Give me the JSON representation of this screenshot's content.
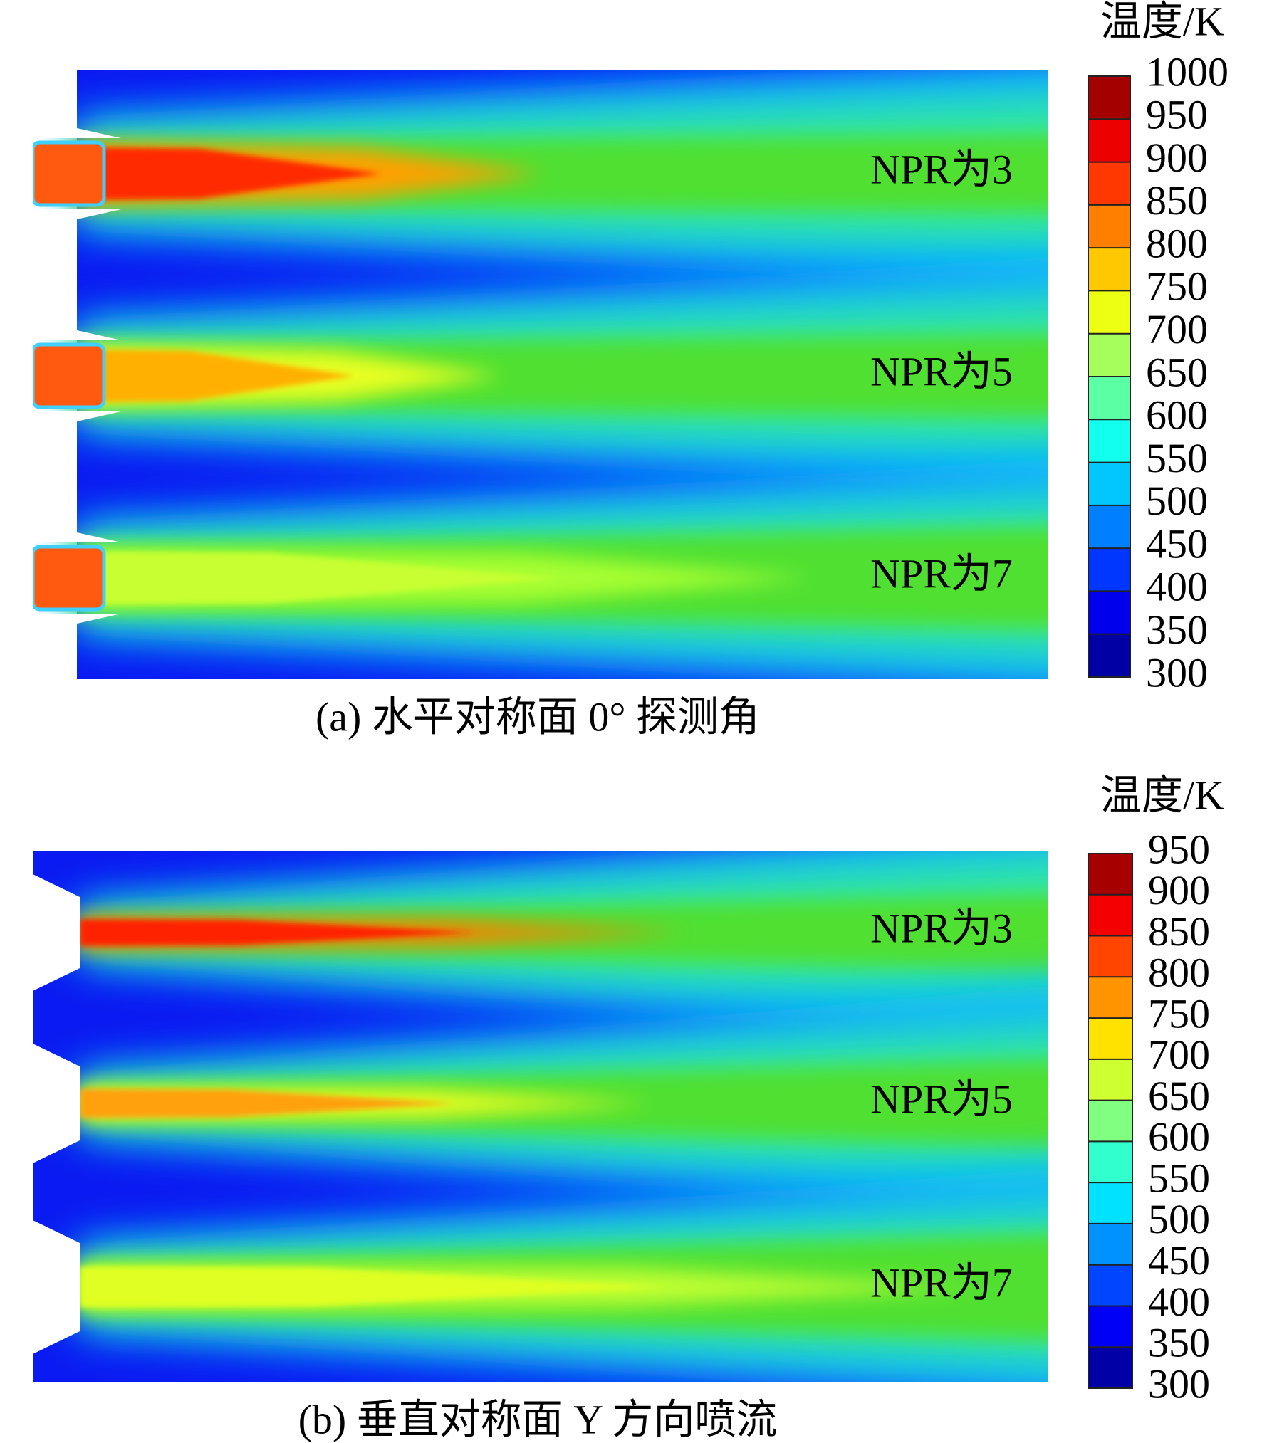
{
  "panels": [
    {
      "caption": "(a) 水平对称面 0° 探测角",
      "colorbar": {
        "title": "温度/K",
        "ticks": [
          1000,
          950,
          900,
          850,
          800,
          750,
          700,
          650,
          600,
          550,
          500,
          450,
          400,
          350,
          300
        ]
      },
      "cases": [
        "NPR为3",
        "NPR为5",
        "NPR为7"
      ]
    },
    {
      "caption": "(b) 垂直对称面 Y 方向喷流",
      "colorbar": {
        "title": "温度/K",
        "ticks": [
          950,
          900,
          850,
          800,
          750,
          700,
          650,
          600,
          550,
          500,
          450,
          400,
          350,
          300
        ]
      },
      "cases": [
        "NPR为3",
        "NPR为5",
        "NPR为7"
      ]
    }
  ]
}
